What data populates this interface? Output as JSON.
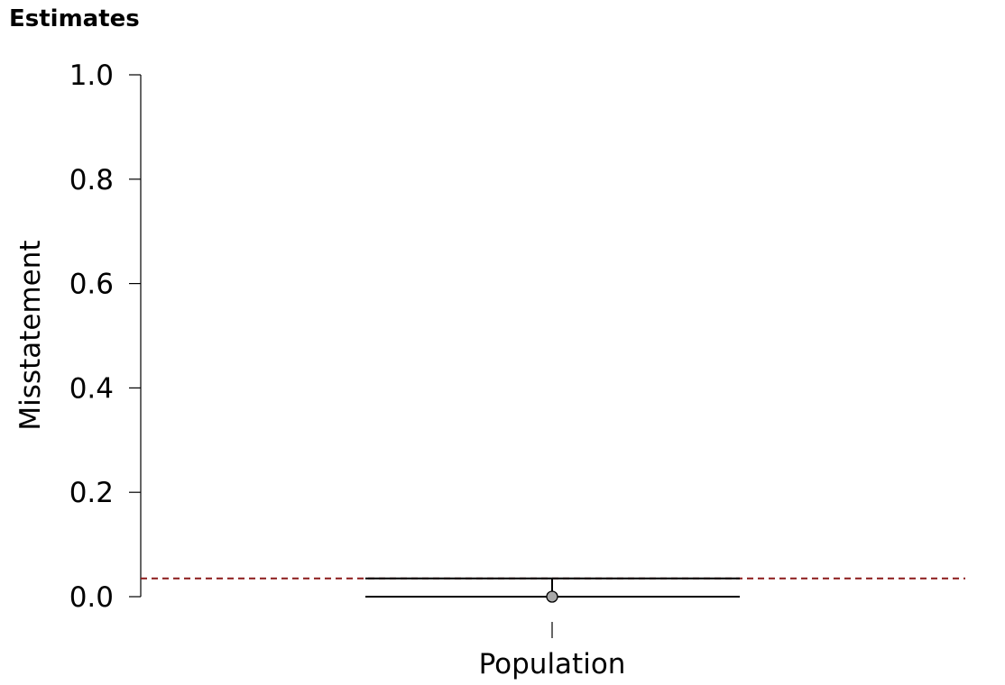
{
  "section_title": "Estimates",
  "chart_data": {
    "type": "errorbar",
    "categories": [
      "Population"
    ],
    "ylabel": "Misstatement",
    "xlabel": "",
    "ylim": [
      0,
      1
    ],
    "yticks": [
      0.0,
      0.2,
      0.4,
      0.6,
      0.8,
      1.0
    ],
    "ytick_labels": [
      "0.0",
      "0.2",
      "0.4",
      "0.6",
      "0.8",
      "1.0"
    ],
    "points": [
      {
        "category": "Population",
        "estimate": 0.0,
        "lower": 0.0,
        "upper": 0.035
      }
    ],
    "reference_line": {
      "value": 0.035,
      "style": "dashed",
      "color": "#8b1a1a"
    },
    "point_color": "#a9a9a9",
    "grid": false
  }
}
